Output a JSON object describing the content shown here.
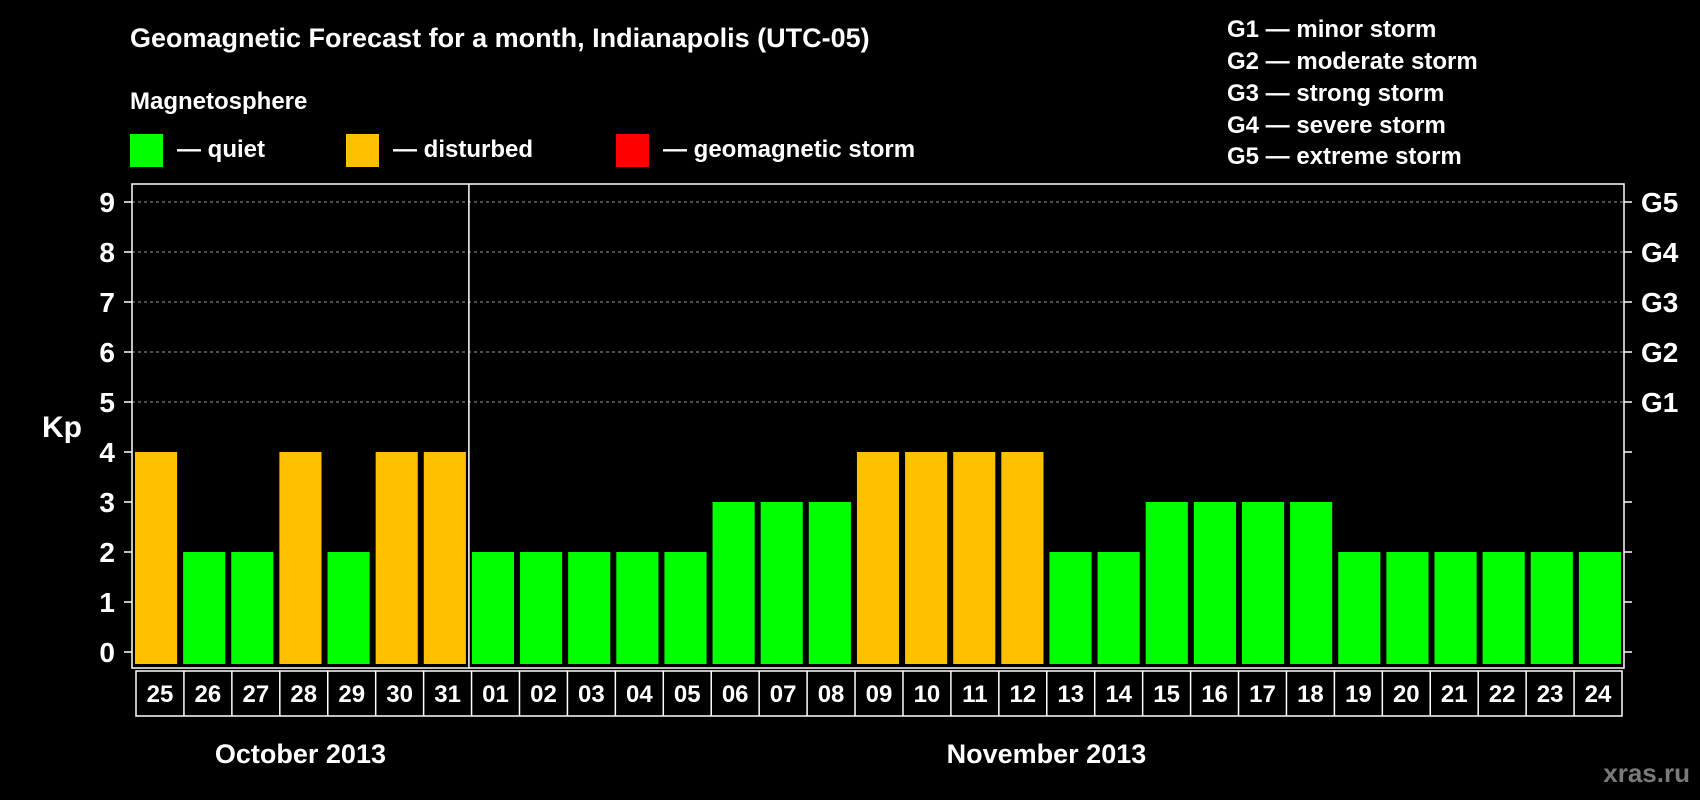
{
  "title": "Geomagnetic Forecast for a month, Indianapolis (UTC-05)",
  "legend": {
    "heading": "Magnetosphere",
    "items": [
      {
        "label": "— quiet",
        "color": "#00ff00"
      },
      {
        "label": "— disturbed",
        "color": "#ffc000"
      },
      {
        "label": "— geomagnetic storm",
        "color": "#ff0000"
      }
    ]
  },
  "storm_scale": [
    "G1 — minor storm",
    "G2 — moderate storm",
    "G3 — strong storm",
    "G4 — severe storm",
    "G5 — extreme storm"
  ],
  "watermark": "xras.ru",
  "chart_data": {
    "type": "bar",
    "ylabel": "Kp",
    "ylim": [
      0,
      9
    ],
    "yticks": [
      "0",
      "1",
      "2",
      "3",
      "4",
      "5",
      "6",
      "7",
      "8",
      "9"
    ],
    "right_ticks": [
      {
        "kp": 5,
        "label": "G1"
      },
      {
        "kp": 6,
        "label": "G2"
      },
      {
        "kp": 7,
        "label": "G3"
      },
      {
        "kp": 8,
        "label": "G4"
      },
      {
        "kp": 9,
        "label": "G5"
      }
    ],
    "grid": "dashed horizontal at Kp 5–9",
    "months": [
      {
        "label": "October 2013",
        "days": 7
      },
      {
        "label": "November 2013",
        "days": 24
      }
    ],
    "categories": [
      "25",
      "26",
      "27",
      "28",
      "29",
      "30",
      "31",
      "01",
      "02",
      "03",
      "04",
      "05",
      "06",
      "07",
      "08",
      "09",
      "10",
      "11",
      "12",
      "13",
      "14",
      "15",
      "16",
      "17",
      "18",
      "19",
      "20",
      "21",
      "22",
      "23",
      "24"
    ],
    "values": [
      4,
      2,
      2,
      4,
      2,
      4,
      4,
      2,
      2,
      2,
      2,
      2,
      3,
      3,
      3,
      4,
      4,
      4,
      4,
      2,
      2,
      3,
      3,
      3,
      3,
      2,
      2,
      2,
      2,
      2,
      2
    ],
    "colors": {
      "quiet": "#00ff00",
      "disturbed": "#ffc000",
      "storm": "#ff0000"
    }
  }
}
